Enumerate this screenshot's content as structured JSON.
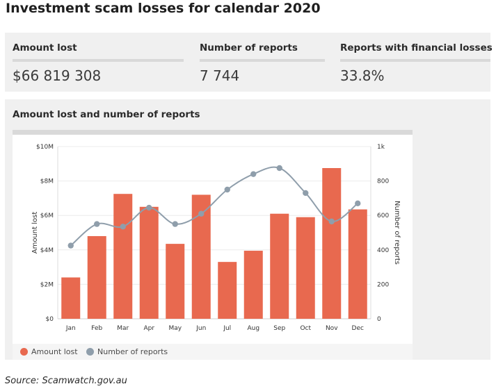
{
  "title": "Investment scam losses for calendar 2020",
  "stats": [
    {
      "label": "Amount lost",
      "value": "$66 819 308"
    },
    {
      "label": "Number of reports",
      "value": "7 744"
    },
    {
      "label": "Reports with financial losses",
      "value": "33.8%"
    }
  ],
  "chart_title": "Amount lost and number of reports",
  "source": "Source: Scamwatch.gov.au",
  "colors": {
    "bar": "#e8694f",
    "line": "#8f9eab"
  },
  "chart_data": {
    "type": "bar",
    "categories": [
      "Jan",
      "Feb",
      "Mar",
      "Apr",
      "May",
      "Jun",
      "Jul",
      "Aug",
      "Sep",
      "Oct",
      "Nov",
      "Dec"
    ],
    "series": [
      {
        "name": "Amount lost",
        "type": "bar",
        "axis": "left",
        "values": [
          2400000,
          4800000,
          7250000,
          6500000,
          4350000,
          7200000,
          3300000,
          3950000,
          6100000,
          5900000,
          8750000,
          6350000
        ]
      },
      {
        "name": "Number of reports",
        "type": "line",
        "axis": "right",
        "values": [
          425,
          550,
          535,
          645,
          550,
          610,
          750,
          840,
          875,
          730,
          565,
          670
        ]
      }
    ],
    "ylabel": "Amount lost",
    "y2label": "Number of reports",
    "ylim": [
      0,
      10000000
    ],
    "y2lim": [
      0,
      1000
    ],
    "yticks": [
      "$0",
      "$2M",
      "$4M",
      "$6M",
      "$8M",
      "$10M"
    ],
    "y2ticks": [
      "0",
      "200",
      "400",
      "600",
      "800",
      "1k"
    ],
    "grid": true,
    "legend": "bottom-left"
  }
}
